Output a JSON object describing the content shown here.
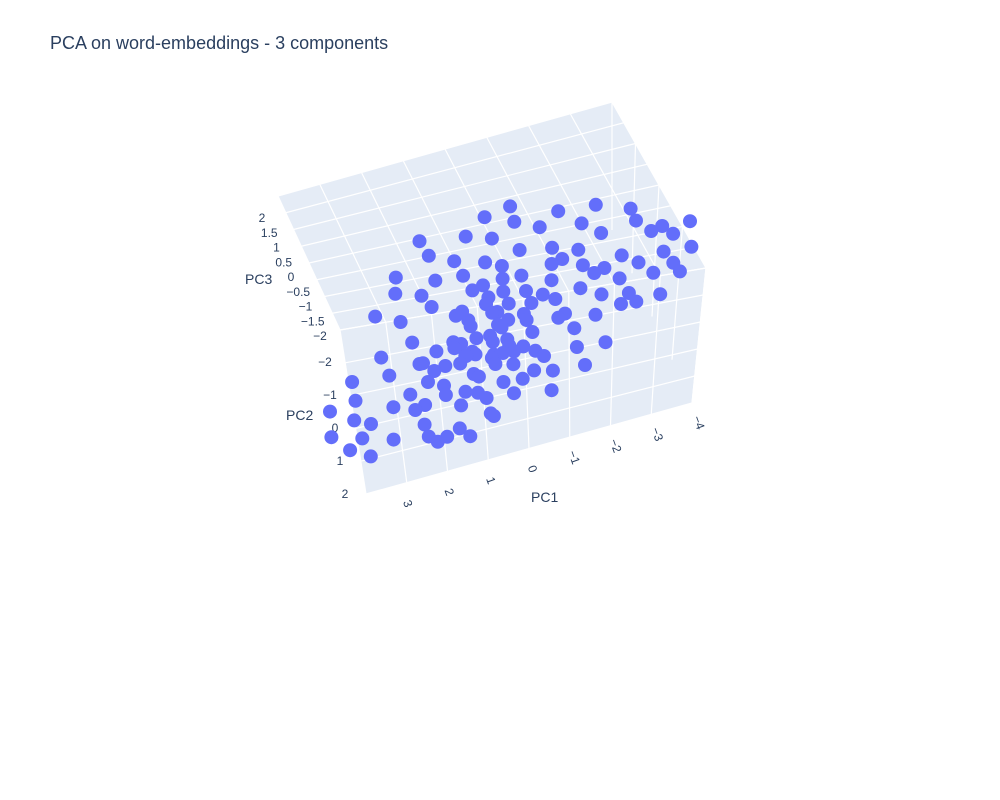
{
  "chart_data": {
    "type": "scatter",
    "title": "PCA on word-embeddings - 3 components",
    "dimensions": 3,
    "axes": {
      "x": {
        "label": "PC1",
        "ticks": [
          "3",
          "2",
          "1",
          "0",
          "−1",
          "−2",
          "−3",
          "−4"
        ]
      },
      "y": {
        "label": "PC2",
        "ticks": [
          "−2",
          "−1",
          "0",
          "1",
          "2"
        ]
      },
      "z": {
        "label": "PC3",
        "ticks": [
          "2",
          "1.5",
          "1",
          "0.5",
          "0",
          "−0.5",
          "−1",
          "−1.5",
          "−2"
        ]
      }
    },
    "marker_color": "#636efa",
    "scene_background": "#e5ecf6",
    "gridlines": true,
    "points": [
      [
        -1.2,
        -1.8,
        1.6
      ],
      [
        -2.8,
        -1.6,
        0.8
      ],
      [
        -3.1,
        -1.4,
        0.7
      ],
      [
        -2.5,
        -1.2,
        0.2
      ],
      [
        -2.9,
        -1.0,
        0.0
      ],
      [
        -3.3,
        -0.9,
        0.3
      ],
      [
        -2.2,
        -1.5,
        1.2
      ],
      [
        -1.6,
        -0.9,
        0.4
      ],
      [
        -1.9,
        -0.6,
        0.0
      ],
      [
        -2.4,
        -0.4,
        -0.2
      ],
      [
        -2.7,
        -0.7,
        -0.5
      ],
      [
        -1.5,
        -0.3,
        -0.6
      ],
      [
        -1.2,
        -0.5,
        -0.3
      ],
      [
        -0.9,
        -0.6,
        0.1
      ],
      [
        -0.7,
        -0.8,
        0.5
      ],
      [
        -0.4,
        -0.5,
        0.2
      ],
      [
        -0.6,
        -0.2,
        -0.4
      ],
      [
        -0.3,
        -0.1,
        -0.8
      ],
      [
        -1.0,
        0.0,
        -1.0
      ],
      [
        -1.3,
        0.3,
        -1.2
      ],
      [
        -0.1,
        0.0,
        -0.3
      ],
      [
        0.2,
        -0.2,
        0.0
      ],
      [
        0.1,
        0.2,
        -0.5
      ],
      [
        0.4,
        -0.3,
        0.3
      ],
      [
        0.6,
        -0.1,
        -0.2
      ],
      [
        0.3,
        0.4,
        -0.9
      ],
      [
        0.5,
        0.6,
        -1.1
      ],
      [
        0.8,
        0.2,
        -0.6
      ],
      [
        0.9,
        -0.4,
        0.1
      ],
      [
        1.1,
        -0.2,
        -0.3
      ],
      [
        0.0,
        0.6,
        -1.4
      ],
      [
        -0.2,
        0.9,
        -1.6
      ],
      [
        0.4,
        1.0,
        -1.8
      ],
      [
        0.8,
        1.2,
        -1.9
      ],
      [
        1.2,
        1.0,
        -1.5
      ],
      [
        1.5,
        0.8,
        -1.2
      ],
      [
        1.8,
        1.1,
        -1.7
      ],
      [
        2.2,
        1.3,
        -1.9
      ],
      [
        1.4,
        0.4,
        -0.8
      ],
      [
        1.7,
        0.2,
        -0.4
      ],
      [
        2.0,
        -0.1,
        0.0
      ],
      [
        2.3,
        0.3,
        -0.5
      ],
      [
        2.6,
        0.0,
        -0.2
      ],
      [
        2.9,
        0.5,
        -0.9
      ],
      [
        3.1,
        0.2,
        -0.6
      ],
      [
        1.0,
        -0.8,
        0.6
      ],
      [
        1.3,
        -1.0,
        0.9
      ],
      [
        1.6,
        -1.3,
        1.1
      ],
      [
        1.9,
        -1.1,
        0.8
      ],
      [
        2.2,
        -1.4,
        1.3
      ],
      [
        2.5,
        -1.6,
        1.6
      ],
      [
        2.8,
        -1.2,
        1.0
      ],
      [
        0.2,
        -1.2,
        1.2
      ],
      [
        -0.1,
        -1.5,
        1.5
      ],
      [
        0.5,
        -1.6,
        1.7
      ],
      [
        0.7,
        -1.9,
        1.9
      ],
      [
        -0.5,
        -1.3,
        1.0
      ],
      [
        -0.8,
        -1.1,
        0.8
      ],
      [
        0.0,
        -0.9,
        0.7
      ],
      [
        0.3,
        -0.7,
        0.5
      ],
      [
        0.6,
        -0.5,
        0.4
      ],
      [
        -0.2,
        0.3,
        -0.2
      ],
      [
        0.1,
        0.5,
        -0.3
      ],
      [
        0.4,
        0.7,
        -0.5
      ],
      [
        0.7,
        0.5,
        -0.1
      ],
      [
        1.0,
        0.3,
        0.0
      ],
      [
        1.3,
        0.6,
        -0.3
      ],
      [
        1.6,
        0.5,
        -0.1
      ],
      [
        -1.7,
        0.2,
        -0.7
      ],
      [
        -2.0,
        0.5,
        -1.0
      ],
      [
        -2.3,
        0.1,
        -0.8
      ],
      [
        -1.4,
        0.6,
        -1.5
      ],
      [
        -0.9,
        0.5,
        -0.9
      ],
      [
        -0.6,
        0.8,
        -1.2
      ],
      [
        -0.3,
        1.1,
        -1.5
      ],
      [
        0.1,
        1.3,
        -1.8
      ],
      [
        0.6,
        1.4,
        -1.6
      ],
      [
        1.0,
        1.5,
        -1.4
      ],
      [
        2.0,
        0.8,
        -1.0
      ],
      [
        2.4,
        0.9,
        -1.3
      ],
      [
        2.7,
        1.2,
        -1.7
      ],
      [
        1.1,
        -0.6,
        0.2
      ],
      [
        0.8,
        -0.9,
        0.6
      ],
      [
        0.5,
        -1.1,
        0.9
      ],
      [
        -0.3,
        -0.4,
        0.0
      ],
      [
        0.0,
        -0.2,
        0.1
      ],
      [
        0.3,
        0.0,
        -0.1
      ],
      [
        0.6,
        0.1,
        -0.4
      ],
      [
        0.9,
        0.0,
        -0.2
      ],
      [
        1.2,
        -0.4,
        0.3
      ],
      [
        -0.5,
        0.1,
        -0.5
      ],
      [
        -0.8,
        0.2,
        -0.6
      ],
      [
        -1.1,
        -0.2,
        -0.1
      ],
      [
        -1.4,
        -0.6,
        0.3
      ],
      [
        -1.8,
        -0.9,
        0.5
      ],
      [
        -2.1,
        -1.1,
        0.6
      ],
      [
        -2.6,
        -1.4,
        0.9
      ],
      [
        -3.0,
        -1.2,
        0.4
      ],
      [
        -3.4,
        -1.5,
        0.9
      ],
      [
        -2.0,
        -1.7,
        1.4
      ],
      [
        -1.5,
        -1.4,
        1.1
      ],
      [
        -1.1,
        -1.2,
        0.9
      ],
      [
        1.8,
        -0.6,
        0.5
      ],
      [
        2.1,
        -0.8,
        0.7
      ],
      [
        2.4,
        -0.5,
        0.3
      ],
      [
        2.7,
        -0.9,
        0.8
      ],
      [
        3.0,
        -0.6,
        0.5
      ],
      [
        1.5,
        -1.6,
        1.5
      ],
      [
        1.2,
        -1.8,
        1.8
      ],
      [
        0.9,
        -1.5,
        1.4
      ],
      [
        0.2,
        0.8,
        -1.0
      ],
      [
        0.5,
        0.9,
        -1.2
      ],
      [
        -0.4,
        0.4,
        -0.7
      ],
      [
        -0.7,
        0.6,
        -1.0
      ],
      [
        0.9,
        0.8,
        -0.9
      ],
      [
        1.3,
        0.9,
        -1.0
      ],
      [
        1.7,
        0.7,
        -0.8
      ],
      [
        -0.2,
        -0.7,
        0.4
      ],
      [
        0.1,
        -0.5,
        0.3
      ],
      [
        0.4,
        -0.9,
        0.7
      ],
      [
        -1.9,
        -0.3,
        -0.3
      ],
      [
        -2.2,
        -0.8,
        0.2
      ],
      [
        -2.5,
        -0.6,
        -0.1
      ],
      [
        -1.3,
        -1.0,
        0.6
      ],
      [
        -0.6,
        -1.0,
        0.8
      ],
      [
        0.7,
        0.3,
        -0.3
      ],
      [
        1.0,
        0.7,
        -0.7
      ],
      [
        0.2,
        0.1,
        -0.2
      ],
      [
        -0.1,
        0.3,
        -0.4
      ],
      [
        0.5,
        0.3,
        -0.3
      ],
      [
        0.8,
        -0.2,
        0.1
      ],
      [
        -0.4,
        -0.3,
        -0.1
      ],
      [
        0.3,
        -0.4,
        0.2
      ],
      [
        0.6,
        -0.7,
        0.4
      ],
      [
        0.0,
        0.4,
        -0.6
      ],
      [
        -0.3,
        0.7,
        -0.9
      ],
      [
        1.4,
        0.1,
        -0.2
      ],
      [
        1.1,
        0.4,
        -0.4
      ],
      [
        0.1,
        -0.1,
        0.0
      ],
      [
        -0.6,
        -0.6,
        0.3
      ],
      [
        2.5,
        1.1,
        -1.5
      ],
      [
        2.8,
        0.8,
        -1.2
      ],
      [
        3.2,
        1.0,
        -1.4
      ],
      [
        3.4,
        0.6,
        -1.0
      ],
      [
        -3.2,
        -0.6,
        -0.3
      ],
      [
        -3.6,
        -1.1,
        0.5
      ],
      [
        -3.5,
        -0.8,
        0.1
      ],
      [
        -1.0,
        -1.6,
        1.3
      ],
      [
        -0.4,
        -1.8,
        1.6
      ],
      [
        0.9,
        -1.2,
        1.0
      ]
    ]
  }
}
